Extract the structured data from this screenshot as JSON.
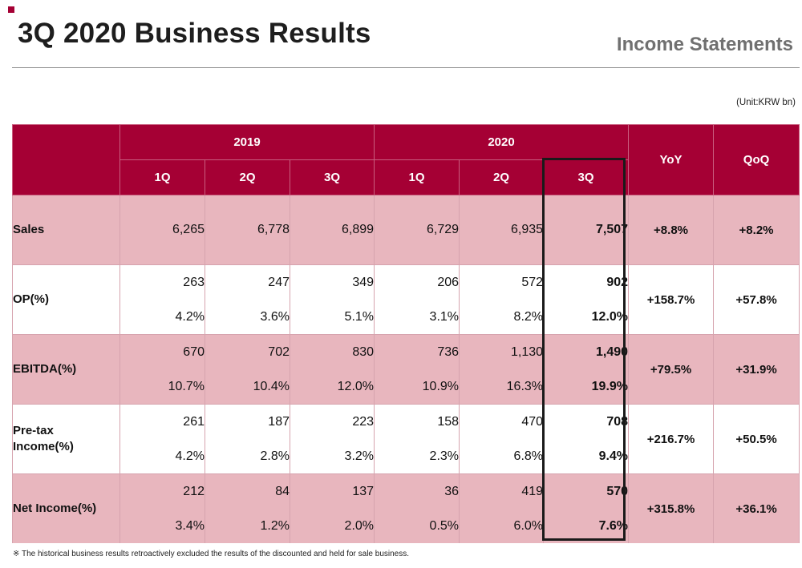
{
  "header": {
    "title": "3Q 2020 Business Results",
    "subtitle": "Income Statements",
    "unit": "(Unit:KRW bn)"
  },
  "table": {
    "years": [
      "2019",
      "2020"
    ],
    "quarters": [
      "1Q",
      "2Q",
      "3Q",
      "1Q",
      "2Q",
      "3Q"
    ],
    "yoy_label": "YoY",
    "qoq_label": "QoQ",
    "rows": [
      {
        "label": "Sales",
        "values": [
          "6,265",
          "6,778",
          "6,899",
          "6,729",
          "6,935",
          "7,507"
        ],
        "yoy": "+8.8%",
        "qoq": "+8.2%"
      },
      {
        "label": "OP(%)",
        "values": [
          "263",
          "247",
          "349",
          "206",
          "572",
          "902"
        ],
        "ratios": [
          "4.2%",
          "3.6%",
          "5.1%",
          "3.1%",
          "8.2%",
          "12.0%"
        ],
        "yoy": "+158.7%",
        "qoq": "+57.8%"
      },
      {
        "label": "EBITDA(%)",
        "values": [
          "670",
          "702",
          "830",
          "736",
          "1,130",
          "1,490"
        ],
        "ratios": [
          "10.7%",
          "10.4%",
          "12.0%",
          "10.9%",
          "16.3%",
          "19.9%"
        ],
        "yoy": "+79.5%",
        "qoq": "+31.9%"
      },
      {
        "label_line1": "Pre-tax",
        "label_line2": "Income(%)",
        "values": [
          "261",
          "187",
          "223",
          "158",
          "470",
          "708"
        ],
        "ratios": [
          "4.2%",
          "2.8%",
          "3.2%",
          "2.3%",
          "6.8%",
          "9.4%"
        ],
        "yoy": "+216.7%",
        "qoq": "+50.5%"
      },
      {
        "label": "Net Income(%)",
        "values": [
          "212",
          "84",
          "137",
          "36",
          "419",
          "570"
        ],
        "ratios": [
          "3.4%",
          "1.2%",
          "2.0%",
          "0.5%",
          "6.0%",
          "7.6%"
        ],
        "yoy": "+315.8%",
        "qoq": "+36.1%"
      }
    ]
  },
  "footnote": "※ The historical business results retroactively excluded the results of the discounted and held for sale business.",
  "colors": {
    "brand": "#a50034",
    "row_shade": "#e8b6be",
    "highlight_border": "#1a1a1a"
  }
}
